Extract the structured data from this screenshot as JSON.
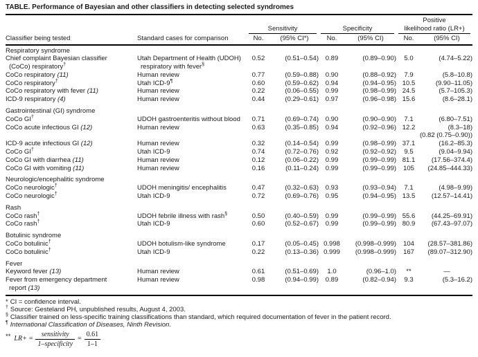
{
  "title": "TABLE. Performance of Bayesian and other classifiers in detecting selected syndromes",
  "header": {
    "classifier": "Classifier being tested",
    "standard": "Standard cases for comparison",
    "sensitivity": "Sensitivity",
    "specificity": "Specificity",
    "lr_top": "Positive",
    "lr": "likelihood ratio (LR+)",
    "no": "No.",
    "ci_star": "(95% CI*)",
    "ci": "(95% CI)"
  },
  "sections": [
    {
      "name": "Respiratory syndrome",
      "rows": [
        {
          "classifier": [
            "Chief complaint Bayesian classifier",
            "(CoCo) respiratory†"
          ],
          "standard": [
            "Utah Department of Health (UDOH)",
            "respiratory with fever§"
          ],
          "sens_no": "0.52",
          "sens_ci": "(0.51–0.54)",
          "spec_no": "0.89",
          "spec_ci": "(0.89–0.90)",
          "lr_no": "5.0",
          "lr_ci": "(4.74–5.22)"
        },
        {
          "classifier": "CoCo respiratory (11)",
          "standard": "Human review",
          "sens_no": "0.77",
          "sens_ci": "(0.59–0.88)",
          "spec_no": "0.90",
          "spec_ci": "(0.88–0.92)",
          "lr_no": "7.9",
          "lr_ci": "(5.8–10.8)"
        },
        {
          "classifier": "CoCo respiratory†",
          "standard": "Utah ICD-9¶",
          "sens_no": "0.60",
          "sens_ci": "(0.59–0.62)",
          "spec_no": "0.94",
          "spec_ci": "(0.94–0.95)",
          "lr_no": "10.5",
          "lr_ci": "(9.90–11.05)"
        },
        {
          "classifier": "CoCo respiratory with fever (11)",
          "standard": "Human review",
          "sens_no": "0.22",
          "sens_ci": "(0.06–0.55)",
          "spec_no": "0.99",
          "spec_ci": "(0.98–0.99)",
          "lr_no": "24.5",
          "lr_ci": "(5.7–105.3)"
        },
        {
          "classifier": "ICD-9 respiratory (4)",
          "standard": "Human review",
          "sens_no": "0.44",
          "sens_ci": "(0.29–0.61)",
          "spec_no": "0.97",
          "spec_ci": "(0.96–0.98)",
          "lr_no": "15.6",
          "lr_ci": "(8.6–28.1)"
        }
      ]
    },
    {
      "name": "Gastrointestinal (GI) syndrome",
      "rows": [
        {
          "classifier": "CoCo GI†",
          "standard": "UDOH gastroenteritis without blood",
          "sens_no": "0.71",
          "sens_ci": "(0.69–0.74)",
          "spec_no": "0.90",
          "spec_ci": "(0.90–0.90)",
          "lr_no": "7.1",
          "lr_ci": "(6.80–7.51)"
        },
        {
          "classifier": "CoCo acute infectious GI (12)",
          "standard": "Human review",
          "sens_no": "0.63",
          "sens_ci": "(0.35–0.85)",
          "spec_no": "0.94",
          "spec_ci": "(0.92–0.96)",
          "lr_no": "12.2",
          "lr_ci": "(8.3–18)",
          "lr_extra": "(0.82 (0.75–0.90))"
        },
        {
          "classifier": "ICD-9 acute infectious GI (12)",
          "standard": "Human review",
          "sens_no": "0.32",
          "sens_ci": "(0.14–0.54)",
          "spec_no": "0.99",
          "spec_ci": "(0.98–0.99)",
          "lr_no": "37.1",
          "lr_ci": "(16.2–85.3)"
        },
        {
          "classifier": "CoCo GI†",
          "standard": "Utah ICD-9",
          "sens_no": "0.74",
          "sens_ci": "(0.72–0.76)",
          "spec_no": "0.92",
          "spec_ci": "(0.92–0.92)",
          "lr_no": "9.5",
          "lr_ci": "(9.04–9.94)"
        },
        {
          "classifier": "CoCo GI with diarrhea (11)",
          "standard": "Human review",
          "sens_no": "0.12",
          "sens_ci": "(0.06–0.22)",
          "spec_no": "0.99",
          "spec_ci": "(0.99–0.99)",
          "lr_no": "81.1",
          "lr_ci": "(17.56–374.4)"
        },
        {
          "classifier": "CoCo GI with vomiting (11)",
          "standard": "Human review",
          "sens_no": "0.16",
          "sens_ci": "(0.11–0.24)",
          "spec_no": "0.99",
          "spec_ci": "(0.99–0.99)",
          "lr_no": "105",
          "lr_ci": "(24.85–444.33)"
        }
      ]
    },
    {
      "name": "Neurologic/encephalitic syndrome",
      "rows": [
        {
          "classifier": "CoCo neurologic†",
          "standard": "UDOH meningitis/ encephalitis",
          "sens_no": "0.47",
          "sens_ci": "(0.32–0.63)",
          "spec_no": "0.93",
          "spec_ci": "(0.93–0.94)",
          "lr_no": "7.1",
          "lr_ci": "(4.98–9.99)"
        },
        {
          "classifier": "CoCo neurologic†",
          "standard": "Utah ICD-9",
          "sens_no": "0.72",
          "sens_ci": "(0.69–0.76)",
          "spec_no": "0.95",
          "spec_ci": "(0.94–0.95)",
          "lr_no": "13.5",
          "lr_ci": "(12.57–14.41)"
        }
      ]
    },
    {
      "name": "Rash",
      "rows": [
        {
          "classifier": "CoCo rash†",
          "standard": "UDOH febrile illness with rash§",
          "sens_no": "0.50",
          "sens_ci": "(0.40–0.59)",
          "spec_no": "0.99",
          "spec_ci": "(0.99–0.99)",
          "lr_no": "55.6",
          "lr_ci": "(44.25–69.91)"
        },
        {
          "classifier": "CoCo rash†",
          "standard": "Utah ICD-9",
          "sens_no": "0.60",
          "sens_ci": "(0.52–0.67)",
          "spec_no": "0.99",
          "spec_ci": "(0.99–0.99)",
          "lr_no": "80.9",
          "lr_ci": "(67.43–97.07)"
        }
      ]
    },
    {
      "name": "Botulinic syndrome",
      "rows": [
        {
          "classifier": "CoCo botulinic†",
          "standard": "UDOH botulism-like syndrome",
          "sens_no": "0.17",
          "sens_ci": "(0.05–0.45)",
          "spec_no": "0.998",
          "spec_ci": "(0.998–0.999)",
          "lr_no": "104",
          "lr_ci": "(28.57–381.86)"
        },
        {
          "classifier": "CoCo botulinic†",
          "standard": "Utah ICD-9",
          "sens_no": "0.22",
          "sens_ci": "(0.13–0.36)",
          "spec_no": "0.999",
          "spec_ci": "(0.998–0.999)",
          "lr_no": "167",
          "lr_ci": "(89.07–312.90)"
        }
      ]
    },
    {
      "name": "Fever",
      "rows": [
        {
          "classifier": "Keyword fever (13)",
          "standard": "Human review",
          "sens_no": "0.61",
          "sens_ci": "(0.51–0.69)",
          "spec_no": "1.0",
          "spec_ci": "(0.96–1.0)",
          "lr_no": "**",
          "lr_ci": "—"
        },
        {
          "classifier": [
            "Fever from emergency department",
            "report (13)"
          ],
          "standard": "Human review",
          "sens_no": "0.98",
          "sens_ci": "(0.94–0.99)",
          "spec_no": "0.89",
          "spec_ci": "(0.82–0.94)",
          "lr_no": "9.3",
          "lr_ci": "(5.3–16.2)"
        }
      ]
    }
  ],
  "footnotes": [
    {
      "marker": "*",
      "text": "CI = confidence interval.",
      "italic": false
    },
    {
      "marker": "†",
      "text": "Source: Gesteland PH, unpublished results, August 4, 2003.",
      "italic": false
    },
    {
      "marker": "§",
      "text": "Classifier trained on less-specific training classifications than standard, which required documentation of fever in the patient record.",
      "italic": false
    },
    {
      "marker": "¶",
      "text": "International Classification of Diseases, Ninth Revision.",
      "italic": true
    }
  ],
  "formula": {
    "marker": "**",
    "lhs": "LR+",
    "eq1": "=",
    "num1": "sensitivity",
    "den1": "1–specificity",
    "eq2": "=",
    "num2": "0.61",
    "den2": "1–1"
  },
  "colors": {
    "text": "#1a1a1a",
    "background": "#ffffff",
    "rule": "#000000"
  }
}
